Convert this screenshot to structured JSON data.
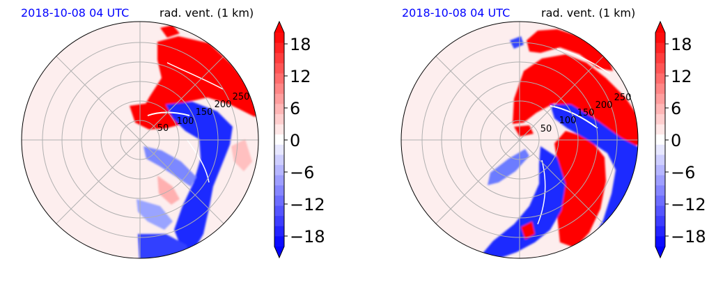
{
  "chart_data": [
    {
      "type": "heatmap",
      "projection": "polar",
      "title_left": "2018-10-08 04 UTC",
      "title_right": "rad. vent. (1 km)",
      "title_left_color": "#0000ff",
      "radial_ticks": [
        "50",
        "100",
        "150",
        "200",
        "250"
      ],
      "colorbar": {
        "ticks": [
          "18",
          "12",
          "6",
          "0",
          "−6",
          "−12",
          "−18"
        ],
        "range": [
          -20,
          20
        ],
        "extend": "both",
        "colormap": "bwr",
        "levels": 21
      }
    },
    {
      "type": "heatmap",
      "projection": "polar",
      "title_left": "2018-10-08 04 UTC",
      "title_right": "rad. vent. (1 km)",
      "title_left_color": "#0000ff",
      "radial_ticks": [
        "50",
        "100",
        "150",
        "200",
        "250"
      ],
      "colorbar": {
        "ticks": [
          "18",
          "12",
          "6",
          "0",
          "−6",
          "−12",
          "−18"
        ],
        "range": [
          -20,
          20
        ],
        "extend": "both",
        "colormap": "bwr",
        "levels": 21
      }
    }
  ]
}
